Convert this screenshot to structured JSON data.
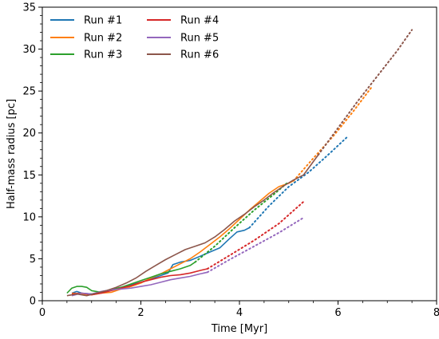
{
  "chart_data": {
    "type": "line",
    "xlabel": "Time [Myr]",
    "ylabel": "Half-mass radius [pc]",
    "xlim": [
      0,
      8
    ],
    "ylim": [
      0,
      35
    ],
    "x_ticks": [
      "0",
      "2",
      "4",
      "6",
      "8"
    ],
    "y_ticks": [
      "0",
      "5",
      "10",
      "15",
      "20",
      "25",
      "30",
      "35"
    ],
    "legend_placement": "top-left",
    "grid": false,
    "series": [
      {
        "name": "Run #1",
        "color": "#1f77b4",
        "solid": [
          [
            0.6,
            0.9
          ],
          [
            0.7,
            1.1
          ],
          [
            0.8,
            0.9
          ],
          [
            1.0,
            0.8
          ],
          [
            1.2,
            1.1
          ],
          [
            1.4,
            1.3
          ],
          [
            1.6,
            1.6
          ],
          [
            1.8,
            1.9
          ],
          [
            2.0,
            2.2
          ],
          [
            2.2,
            2.6
          ],
          [
            2.4,
            3.0
          ],
          [
            2.55,
            3.3
          ],
          [
            2.65,
            4.3
          ],
          [
            2.8,
            4.6
          ],
          [
            3.0,
            4.8
          ],
          [
            3.2,
            5.3
          ],
          [
            3.4,
            5.8
          ],
          [
            3.6,
            6.3
          ],
          [
            3.8,
            7.4
          ],
          [
            3.95,
            8.2
          ],
          [
            4.1,
            8.4
          ],
          [
            4.2,
            8.7
          ]
        ],
        "dotted": [
          [
            4.2,
            8.7
          ],
          [
            4.6,
            11.3
          ],
          [
            5.0,
            13.6
          ],
          [
            5.4,
            15.3
          ],
          [
            5.8,
            17.4
          ],
          [
            6.2,
            19.6
          ]
        ]
      },
      {
        "name": "Run #2",
        "color": "#ff7f0e",
        "solid": [
          [
            0.6,
            0.9
          ],
          [
            0.8,
            0.8
          ],
          [
            1.0,
            0.7
          ],
          [
            1.2,
            0.9
          ],
          [
            1.4,
            1.0
          ],
          [
            1.6,
            1.4
          ],
          [
            1.8,
            1.7
          ],
          [
            2.0,
            2.1
          ],
          [
            2.2,
            2.7
          ],
          [
            2.4,
            3.2
          ],
          [
            2.6,
            3.8
          ],
          [
            2.8,
            4.4
          ],
          [
            3.0,
            5.0
          ],
          [
            3.2,
            5.8
          ],
          [
            3.4,
            6.7
          ],
          [
            3.6,
            7.6
          ],
          [
            3.8,
            8.6
          ],
          [
            4.0,
            9.7
          ],
          [
            4.2,
            10.8
          ],
          [
            4.4,
            11.8
          ],
          [
            4.6,
            12.8
          ],
          [
            4.8,
            13.6
          ],
          [
            5.0,
            14.0
          ],
          [
            5.1,
            14.3
          ]
        ],
        "dotted": [
          [
            5.1,
            14.3
          ],
          [
            5.5,
            17.0
          ],
          [
            5.9,
            19.6
          ],
          [
            6.3,
            22.5
          ],
          [
            6.7,
            25.6
          ]
        ]
      },
      {
        "name": "Run #3",
        "color": "#2ca02c",
        "solid": [
          [
            0.5,
            0.9
          ],
          [
            0.6,
            1.5
          ],
          [
            0.7,
            1.7
          ],
          [
            0.8,
            1.7
          ],
          [
            0.9,
            1.6
          ],
          [
            1.0,
            1.2
          ],
          [
            1.2,
            1.0
          ],
          [
            1.4,
            1.3
          ],
          [
            1.6,
            1.6
          ],
          [
            1.8,
            2.0
          ],
          [
            2.0,
            2.4
          ],
          [
            2.2,
            2.8
          ],
          [
            2.4,
            3.2
          ],
          [
            2.6,
            3.5
          ],
          [
            2.8,
            3.8
          ],
          [
            3.0,
            4.2
          ],
          [
            3.1,
            4.6
          ]
        ],
        "dotted": [
          [
            3.1,
            4.6
          ],
          [
            3.5,
            6.5
          ],
          [
            3.9,
            8.7
          ],
          [
            4.3,
            10.8
          ],
          [
            4.7,
            12.7
          ],
          [
            5.0,
            14.2
          ]
        ]
      },
      {
        "name": "Run #4",
        "color": "#d62728",
        "solid": [
          [
            0.6,
            0.8
          ],
          [
            0.8,
            0.9
          ],
          [
            1.0,
            0.7
          ],
          [
            1.2,
            0.9
          ],
          [
            1.4,
            1.2
          ],
          [
            1.6,
            1.5
          ],
          [
            1.8,
            1.8
          ],
          [
            2.0,
            2.2
          ],
          [
            2.2,
            2.5
          ],
          [
            2.4,
            2.8
          ],
          [
            2.6,
            3.0
          ],
          [
            2.8,
            3.1
          ],
          [
            3.0,
            3.3
          ],
          [
            3.2,
            3.6
          ],
          [
            3.35,
            3.8
          ]
        ],
        "dotted": [
          [
            3.35,
            3.8
          ],
          [
            3.8,
            5.4
          ],
          [
            4.3,
            7.2
          ],
          [
            4.8,
            9.2
          ],
          [
            5.3,
            11.8
          ]
        ]
      },
      {
        "name": "Run #5",
        "color": "#9467bd",
        "solid": [
          [
            0.6,
            0.6
          ],
          [
            0.8,
            0.9
          ],
          [
            1.0,
            0.8
          ],
          [
            1.2,
            1.1
          ],
          [
            1.4,
            1.3
          ],
          [
            1.6,
            1.4
          ],
          [
            1.8,
            1.5
          ],
          [
            2.0,
            1.7
          ],
          [
            2.2,
            1.9
          ],
          [
            2.4,
            2.2
          ],
          [
            2.6,
            2.5
          ],
          [
            2.8,
            2.7
          ],
          [
            3.0,
            2.9
          ],
          [
            3.2,
            3.2
          ],
          [
            3.35,
            3.4
          ]
        ],
        "dotted": [
          [
            3.35,
            3.4
          ],
          [
            3.8,
            4.9
          ],
          [
            4.3,
            6.5
          ],
          [
            4.8,
            8.1
          ],
          [
            5.3,
            9.9
          ]
        ]
      },
      {
        "name": "Run #6",
        "color": "#8c564b",
        "solid": [
          [
            0.5,
            0.6
          ],
          [
            0.7,
            0.8
          ],
          [
            0.9,
            0.6
          ],
          [
            1.1,
            0.9
          ],
          [
            1.3,
            1.2
          ],
          [
            1.5,
            1.6
          ],
          [
            1.7,
            2.1
          ],
          [
            1.9,
            2.7
          ],
          [
            2.1,
            3.5
          ],
          [
            2.3,
            4.2
          ],
          [
            2.5,
            4.9
          ],
          [
            2.7,
            5.5
          ],
          [
            2.9,
            6.1
          ],
          [
            3.1,
            6.5
          ],
          [
            3.3,
            6.9
          ],
          [
            3.5,
            7.6
          ],
          [
            3.7,
            8.5
          ],
          [
            3.9,
            9.5
          ],
          [
            4.1,
            10.3
          ],
          [
            4.3,
            11.2
          ],
          [
            4.5,
            12.0
          ],
          [
            4.7,
            12.9
          ],
          [
            4.9,
            13.7
          ],
          [
            5.1,
            14.4
          ],
          [
            5.3,
            15.0
          ],
          [
            5.5,
            16.6
          ],
          [
            5.6,
            17.4
          ]
        ],
        "dotted": [
          [
            5.6,
            17.4
          ],
          [
            6.0,
            20.6
          ],
          [
            6.4,
            23.8
          ],
          [
            6.8,
            26.8
          ],
          [
            7.2,
            29.8
          ],
          [
            7.5,
            32.3
          ]
        ]
      }
    ]
  }
}
